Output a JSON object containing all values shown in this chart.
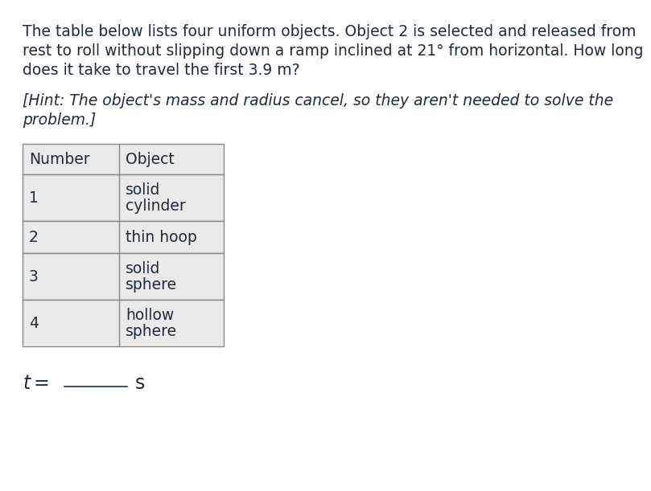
{
  "background_color": "#ffffff",
  "main_text_lines": [
    "The table below lists four uniform objects. Object 2 is selected and released from",
    "rest to roll without slipping down a ramp inclined at 21° from horizontal. How long",
    "does it take to travel the first 3.9 m?"
  ],
  "hint_text_lines": [
    "[Hint: The object's mass and radius cancel, so they aren't needed to solve the",
    "problem.]"
  ],
  "table_header": [
    "Number",
    "Object"
  ],
  "table_rows": [
    [
      "1",
      "solid\ncylinder"
    ],
    [
      "2",
      "thin hoop"
    ],
    [
      "3",
      "solid\nsphere"
    ],
    [
      "4",
      "hollow\nsphere"
    ]
  ],
  "answer_label": "t =",
  "answer_unit": "s",
  "text_color": "#1e2d3d",
  "table_border_color": "#888888",
  "table_bg_color": "#eaeaea",
  "font_size_main": 13.5,
  "font_size_hint": 13.5,
  "font_size_table": 13.5,
  "font_size_answer": 17
}
